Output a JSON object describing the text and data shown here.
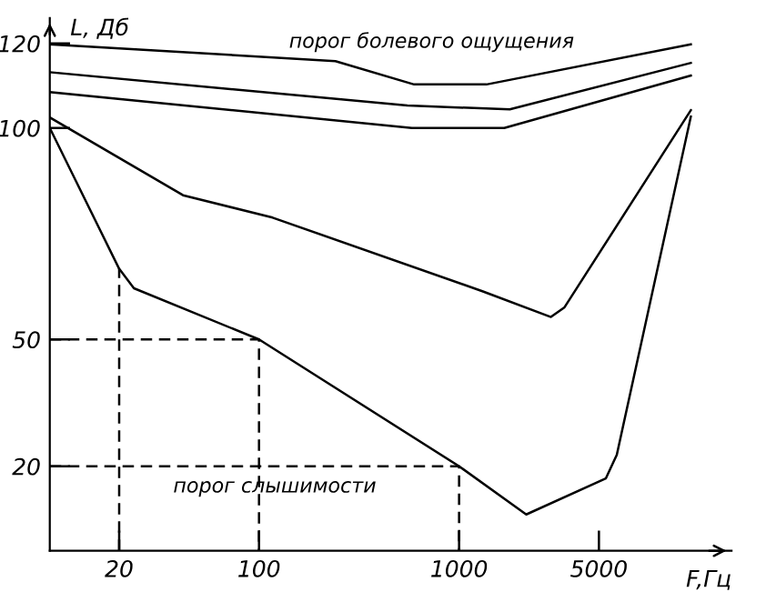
{
  "chart_data": {
    "type": "line",
    "xlabel": "F,Гц",
    "ylabel": "L, Дб",
    "log": "x",
    "grid": false,
    "legend": false,
    "marker": "none",
    "line_style": "solid",
    "xlim": [
      9,
      23000
    ],
    "ylim": [
      0,
      126
    ],
    "xticks": [
      20,
      100,
      1000,
      5000
    ],
    "yticks": [
      20,
      50,
      100,
      120
    ],
    "series": [
      {
        "color": "#000000",
        "x": [
          9,
          241,
          596,
          1370,
          14400
        ],
        "values": [
          119.8,
          115.8,
          110.3,
          110.3,
          119.8
        ]
      },
      {
        "color": "#000000",
        "x": [
          9,
          552,
          1792,
          14400
        ],
        "values": [
          113.2,
          105.3,
          104.4,
          115.4
        ]
      },
      {
        "color": "#000000",
        "x": [
          9,
          581,
          1682,
          14400
        ],
        "values": [
          108.5,
          100,
          100,
          112.4
        ]
      },
      {
        "color": "#000000",
        "x": [
          9,
          41.7,
          117,
          1307,
          2877,
          3365,
          14400
        ],
        "values": [
          102.5,
          84.1,
          78.8,
          61.4,
          55.3,
          57.6,
          104.2
        ]
      },
      {
        "color": "#000000",
        "x": [
          9,
          20,
          23.7,
          100,
          1000,
          2166,
          5410,
          6140,
          14400
        ],
        "values": [
          100,
          66.7,
          62.1,
          50,
          20,
          8.6,
          17.1,
          22.7,
          102.7
        ]
      },
      {
        "color": "#000000",
        "line_style": "dashed",
        "x": [
          20,
          20
        ],
        "values": [
          0,
          66.7
        ]
      },
      {
        "color": "#000000",
        "line_style": "dashed",
        "x": [
          9,
          100,
          100
        ],
        "values": [
          50,
          50,
          0
        ]
      },
      {
        "color": "#000000",
        "line_style": "dashed",
        "x": [
          9,
          1000,
          1000
        ],
        "values": [
          20,
          20,
          0
        ]
      }
    ],
    "annotations": [
      "порог болевого ощущения",
      "порог слышимости"
    ]
  }
}
